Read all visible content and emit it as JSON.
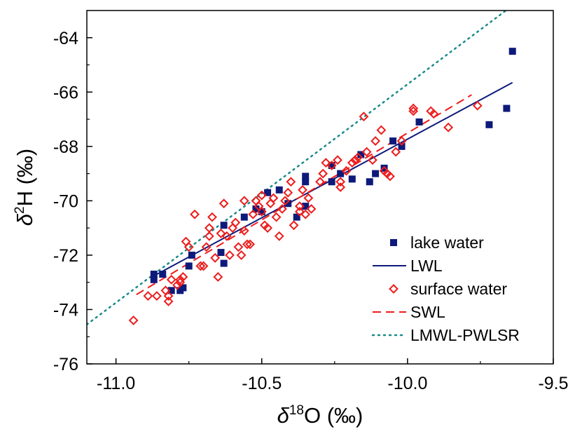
{
  "chart_data": {
    "type": "scatter",
    "x_axis": {
      "label_symbol": "δ",
      "label_superscript": "18",
      "label_main": "O (‰)",
      "range": [
        -11.1,
        -9.5
      ],
      "ticks": [
        -11.0,
        -10.5,
        -10.0,
        -9.5
      ],
      "tick_labels": [
        "-11.0",
        "-10.5",
        "-10.0",
        "-9.5"
      ]
    },
    "y_axis": {
      "label_symbol": "δ",
      "label_superscript": "2",
      "label_main": "H (‰)",
      "range": [
        -76,
        -63
      ],
      "ticks": [
        -76,
        -74,
        -72,
        -70,
        -68,
        -66,
        -64
      ],
      "tick_labels": [
        "-76",
        "-74",
        "-72",
        "-70",
        "-68",
        "-66",
        "-64"
      ]
    },
    "grid": false,
    "legend_position": "bottom-right",
    "series": [
      {
        "name": "lake water",
        "kind": "points",
        "marker": "filled-square",
        "color": "#0d1a7a",
        "points": [
          [
            -10.87,
            -72.7
          ],
          [
            -10.87,
            -72.9
          ],
          [
            -10.84,
            -72.7
          ],
          [
            -10.81,
            -73.3
          ],
          [
            -10.78,
            -73.3
          ],
          [
            -10.77,
            -73.2
          ],
          [
            -10.75,
            -72.4
          ],
          [
            -10.74,
            -72.0
          ],
          [
            -10.64,
            -71.9
          ],
          [
            -10.63,
            -72.3
          ],
          [
            -10.63,
            -70.9
          ],
          [
            -10.56,
            -70.6
          ],
          [
            -10.52,
            -70.3
          ],
          [
            -10.5,
            -70.4
          ],
          [
            -10.48,
            -69.7
          ],
          [
            -10.44,
            -69.6
          ],
          [
            -10.41,
            -70.1
          ],
          [
            -10.38,
            -70.6
          ],
          [
            -10.35,
            -69.1
          ],
          [
            -10.35,
            -69.3
          ],
          [
            -10.35,
            -70.2
          ],
          [
            -10.26,
            -69.3
          ],
          [
            -10.26,
            -68.7
          ],
          [
            -10.23,
            -69.0
          ],
          [
            -10.19,
            -69.2
          ],
          [
            -10.16,
            -68.3
          ],
          [
            -10.13,
            -69.3
          ],
          [
            -10.11,
            -69.0
          ],
          [
            -10.08,
            -68.8
          ],
          [
            -10.05,
            -67.8
          ],
          [
            -10.02,
            -68.0
          ],
          [
            -9.96,
            -67.1
          ],
          [
            -9.72,
            -67.2
          ],
          [
            -9.66,
            -66.6
          ],
          [
            -9.64,
            -64.5
          ]
        ]
      },
      {
        "name": "LWL",
        "kind": "line",
        "style": "solid",
        "color": "#0d1a7a",
        "line": [
          [
            -10.88,
            -72.82
          ],
          [
            -9.64,
            -65.65
          ]
        ]
      },
      {
        "name": "surface water",
        "kind": "points",
        "marker": "open-diamond",
        "color": "#ee1c1c",
        "points": [
          [
            -10.94,
            -74.4
          ],
          [
            -10.89,
            -73.5
          ],
          [
            -10.86,
            -73.5
          ],
          [
            -10.83,
            -73.3
          ],
          [
            -10.82,
            -73.7
          ],
          [
            -10.82,
            -73.5
          ],
          [
            -10.81,
            -72.9
          ],
          [
            -10.79,
            -73.1
          ],
          [
            -10.78,
            -72.9
          ],
          [
            -10.78,
            -73.0
          ],
          [
            -10.77,
            -72.8
          ],
          [
            -10.76,
            -71.5
          ],
          [
            -10.75,
            -71.7
          ],
          [
            -10.73,
            -70.5
          ],
          [
            -10.71,
            -72.4
          ],
          [
            -10.7,
            -72.4
          ],
          [
            -10.69,
            -71.7
          ],
          [
            -10.68,
            -71.0
          ],
          [
            -10.68,
            -71.3
          ],
          [
            -10.67,
            -70.6
          ],
          [
            -10.66,
            -72.1
          ],
          [
            -10.65,
            -72.8
          ],
          [
            -10.64,
            -71.2
          ],
          [
            -10.63,
            -70.1
          ],
          [
            -10.62,
            -71.3
          ],
          [
            -10.61,
            -72.0
          ],
          [
            -10.6,
            -71.0
          ],
          [
            -10.59,
            -70.8
          ],
          [
            -10.58,
            -71.7
          ],
          [
            -10.57,
            -72.0
          ],
          [
            -10.56,
            -71.1
          ],
          [
            -10.56,
            -70.0
          ],
          [
            -10.55,
            -71.6
          ],
          [
            -10.54,
            -71.6
          ],
          [
            -10.53,
            -70.5
          ],
          [
            -10.52,
            -70.0
          ],
          [
            -10.51,
            -70.2
          ],
          [
            -10.5,
            -69.8
          ],
          [
            -10.5,
            -70.4
          ],
          [
            -10.49,
            -70.9
          ],
          [
            -10.48,
            -71.0
          ],
          [
            -10.47,
            -70.1
          ],
          [
            -10.46,
            -69.9
          ],
          [
            -10.45,
            -70.6
          ],
          [
            -10.44,
            -71.3
          ],
          [
            -10.43,
            -70.3
          ],
          [
            -10.42,
            -70.0
          ],
          [
            -10.41,
            -69.7
          ],
          [
            -10.4,
            -69.3
          ],
          [
            -10.39,
            -70.9
          ],
          [
            -10.37,
            -70.2
          ],
          [
            -10.37,
            -70.4
          ],
          [
            -10.36,
            -69.6
          ],
          [
            -10.35,
            -70.5
          ],
          [
            -10.34,
            -69.9
          ],
          [
            -10.33,
            -70.3
          ],
          [
            -10.3,
            -69.3
          ],
          [
            -10.29,
            -69.0
          ],
          [
            -10.28,
            -68.6
          ],
          [
            -10.26,
            -68.7
          ],
          [
            -10.24,
            -68.5
          ],
          [
            -10.23,
            -69.3
          ],
          [
            -10.23,
            -69.5
          ],
          [
            -10.21,
            -68.9
          ],
          [
            -10.19,
            -68.6
          ],
          [
            -10.18,
            -68.5
          ],
          [
            -10.17,
            -68.4
          ],
          [
            -10.15,
            -66.9
          ],
          [
            -10.14,
            -68.2
          ],
          [
            -10.12,
            -68.5
          ],
          [
            -10.11,
            -67.8
          ],
          [
            -10.09,
            -67.4
          ],
          [
            -10.08,
            -68.9
          ],
          [
            -10.07,
            -69.0
          ],
          [
            -10.06,
            -69.1
          ],
          [
            -10.04,
            -68.2
          ],
          [
            -10.02,
            -67.8
          ],
          [
            -9.98,
            -66.6
          ],
          [
            -9.98,
            -66.7
          ],
          [
            -9.92,
            -66.7
          ],
          [
            -9.91,
            -66.8
          ],
          [
            -9.86,
            -67.3
          ],
          [
            -9.76,
            -66.5
          ]
        ]
      },
      {
        "name": "SWL",
        "kind": "line",
        "style": "dashed",
        "color": "#ee1c1c",
        "line": [
          [
            -10.93,
            -73.45
          ],
          [
            -9.78,
            -66.1
          ]
        ]
      },
      {
        "name": "LMWL-PWLSR",
        "kind": "line",
        "style": "dotted",
        "color": "#1a8a8a",
        "line": [
          [
            -11.1,
            -74.55
          ],
          [
            -9.65,
            -62.9
          ]
        ]
      }
    ]
  }
}
